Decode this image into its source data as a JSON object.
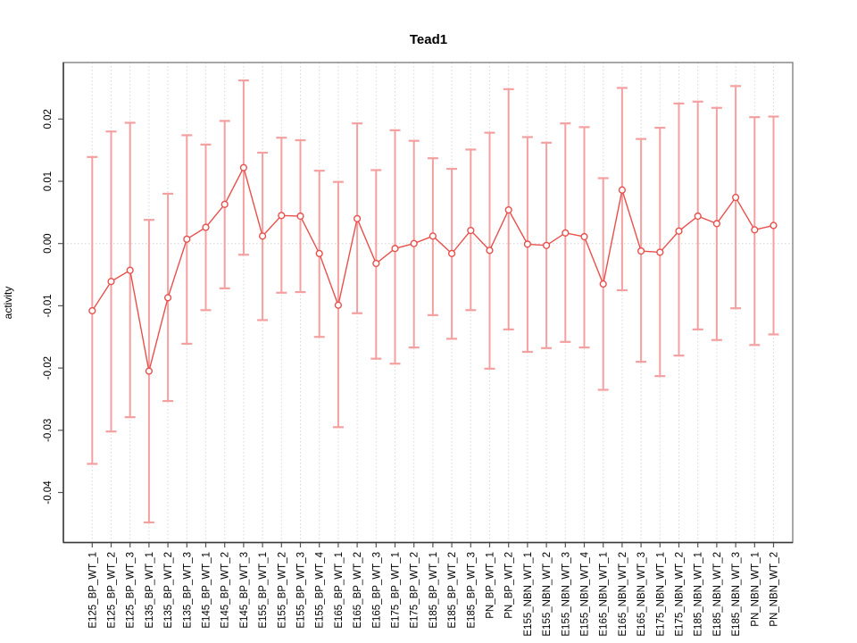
{
  "title": "Tead1",
  "ylabel": "activity",
  "colors": {
    "error_bar": "#f4a0a0",
    "line": "#e8504c",
    "marker_stroke": "#e8504c",
    "marker_fill": "#ffffff",
    "grid": "#d9d9d9",
    "zero_line": "#d4d4d4",
    "box": "#8a8a8a",
    "axis": "#3a3a3a",
    "tick": "#555555"
  },
  "chart_data": {
    "type": "line",
    "title": "Tead1",
    "xlabel": "",
    "ylabel": "activity",
    "legend": "none",
    "grid": "vertical dotted gridline at every category; horizontal dotted line at y=0 only",
    "error_bars": true,
    "marker": "open-circle",
    "ylim": [
      -0.0481,
      0.0291
    ],
    "yticks": [
      0.02,
      0.01,
      0.0,
      -0.01,
      -0.02,
      -0.03,
      -0.04
    ],
    "ytick_labels": [
      "0.02",
      "0.01",
      "0.00",
      "-0.01",
      "-0.02",
      "-0.03",
      "-0.04"
    ],
    "categories": [
      "E125_BP_WT_1",
      "E125_BP_WT_2",
      "E125_BP_WT_3",
      "E135_BP_WT_1",
      "E135_BP_WT_2",
      "E135_BP_WT_3",
      "E145_BP_WT_1",
      "E145_BP_WT_2",
      "E145_BP_WT_3",
      "E155_BP_WT_1",
      "E155_BP_WT_2",
      "E155_BP_WT_3",
      "E155_BP_WT_4",
      "E165_BP_WT_1",
      "E165_BP_WT_2",
      "E165_BP_WT_3",
      "E175_BP_WT_1",
      "E175_BP_WT_2",
      "E185_BP_WT_1",
      "E185_BP_WT_2",
      "E185_BP_WT_3",
      "PN_BP_WT_1",
      "PN_BP_WT_2",
      "E155_NBN_WT_1",
      "E155_NBN_WT_2",
      "E155_NBN_WT_3",
      "E155_NBN_WT_4",
      "E165_NBN_WT_1",
      "E165_NBN_WT_2",
      "E165_NBN_WT_3",
      "E175_NBN_WT_1",
      "E175_NBN_WT_2",
      "E185_NBN_WT_1",
      "E185_NBN_WT_2",
      "E185_NBN_WT_3",
      "PN_NBN_WT_1",
      "PN_NBN_WT_2"
    ],
    "series": [
      {
        "name": "activity",
        "values": [
          -0.0108,
          -0.0061,
          -0.0043,
          -0.0205,
          -0.0087,
          0.0007,
          0.0026,
          0.0063,
          0.0122,
          0.0012,
          0.0045,
          0.0044,
          -0.0016,
          -0.0099,
          0.004,
          -0.0032,
          -0.0008,
          0.0,
          0.0012,
          -0.0016,
          0.0021,
          -0.0011,
          0.0054,
          -0.0001,
          -0.0003,
          0.0017,
          0.0011,
          -0.0065,
          0.0086,
          -0.0012,
          -0.0014,
          0.002,
          0.0044,
          0.0032,
          0.0074,
          0.0022,
          0.0029
        ],
        "upper": [
          0.0139,
          0.018,
          0.0194,
          0.0038,
          0.008,
          0.0174,
          0.0159,
          0.0197,
          0.0262,
          0.0146,
          0.017,
          0.0166,
          0.0117,
          0.0099,
          0.0193,
          0.0118,
          0.0182,
          0.0165,
          0.0137,
          0.012,
          0.0151,
          0.0178,
          0.0248,
          0.0171,
          0.0162,
          0.0193,
          0.0187,
          0.0105,
          0.025,
          0.0168,
          0.0186,
          0.0225,
          0.0228,
          0.0218,
          0.0253,
          0.0203,
          0.0204
        ],
        "lower": [
          -0.0354,
          -0.0302,
          -0.0279,
          -0.0448,
          -0.0253,
          -0.0161,
          -0.0107,
          -0.0072,
          -0.0018,
          -0.0123,
          -0.0079,
          -0.0078,
          -0.015,
          -0.0295,
          -0.0112,
          -0.0185,
          -0.0193,
          -0.0167,
          -0.0115,
          -0.0153,
          -0.0107,
          -0.0201,
          -0.0138,
          -0.0174,
          -0.0168,
          -0.0158,
          -0.0167,
          -0.0235,
          -0.0075,
          -0.019,
          -0.0213,
          -0.018,
          -0.0138,
          -0.0155,
          -0.0104,
          -0.0163,
          -0.0146
        ]
      }
    ]
  }
}
